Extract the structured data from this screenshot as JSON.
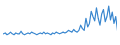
{
  "chart_data": {
    "type": "line",
    "color": "#3a87cf",
    "tick_labels": false,
    "x": [
      0,
      1,
      2,
      3,
      4,
      5,
      6,
      7,
      8,
      9,
      10,
      11,
      12,
      13,
      14,
      15,
      16,
      17,
      18,
      19,
      20,
      21,
      22,
      23,
      24,
      25,
      26,
      27,
      28,
      29,
      30,
      31,
      32,
      33,
      34,
      35,
      36,
      37,
      38,
      39,
      40,
      41,
      42,
      43,
      44,
      45,
      46,
      47,
      48,
      49,
      50,
      51,
      52,
      53,
      54,
      55,
      56,
      57,
      58,
      59,
      60,
      61,
      62,
      63,
      64,
      65
    ],
    "values": [
      10,
      11,
      9,
      10,
      12,
      10,
      9,
      11,
      10,
      10,
      13,
      10,
      9,
      10,
      11,
      10,
      12,
      11,
      10,
      9,
      10,
      11,
      10,
      12,
      10,
      11,
      10,
      9,
      11,
      10,
      12,
      11,
      10,
      11,
      12,
      11,
      12,
      14,
      13,
      12,
      15,
      13,
      12,
      14,
      20,
      16,
      14,
      28,
      18,
      22,
      36,
      30,
      25,
      40,
      28,
      20,
      33,
      38,
      24,
      30,
      42,
      26,
      35,
      22,
      30,
      14
    ],
    "xlim": [
      0,
      65
    ],
    "ylim": [
      0,
      45
    ]
  }
}
